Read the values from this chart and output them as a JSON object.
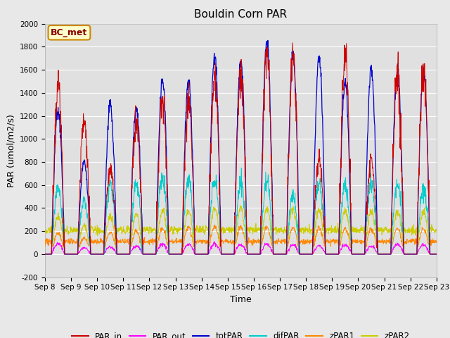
{
  "title": "Bouldin Corn PAR",
  "xlabel": "Time",
  "ylabel": "PAR (umol/m2/s)",
  "ylim": [
    -200,
    2000
  ],
  "n_days": 15,
  "xtick_labels": [
    "Sep 8",
    "Sep 9",
    "Sep 10",
    "Sep 11",
    "Sep 12",
    "Sep 13",
    "Sep 14",
    "Sep 15",
    "Sep 16",
    "Sep 17",
    "Sep 18",
    "Sep 19",
    "Sep 20",
    "Sep 21",
    "Sep 22",
    "Sep 23"
  ],
  "series_colors": {
    "PAR_in": "#cc0000",
    "PAR_out": "#ff00ff",
    "totPAR": "#0000cc",
    "difPAR": "#00cccc",
    "zPAR1": "#ff8800",
    "zPAR2": "#cccc00"
  },
  "fig_bg_color": "#e8e8e8",
  "plot_bg_color": "#e0e0e0",
  "annotation_text": "BC_met",
  "annotation_bg": "#ffffcc",
  "annotation_border": "#cc8800",
  "annotation_text_color": "#880000",
  "grid_color": "#ffffff",
  "title_fontsize": 11,
  "axis_fontsize": 9,
  "tick_fontsize": 7.5,
  "legend_fontsize": 8.5,
  "day_peaks_totPAR": [
    1250,
    800,
    1300,
    1270,
    1500,
    1500,
    1720,
    1680,
    1840,
    1750,
    1710,
    1490,
    1600,
    1600,
    1590
  ],
  "day_peaks_PAR_in": [
    1480,
    1150,
    750,
    1130,
    1340,
    1330,
    1510,
    1510,
    1730,
    1680,
    810,
    1710,
    820,
    1490,
    1590
  ],
  "day_peaks_difPAR": [
    580,
    460,
    600,
    600,
    660,
    650,
    640,
    610,
    630,
    510,
    620,
    600,
    610,
    600,
    590
  ],
  "day_peaks_PAR_out": [
    90,
    55,
    65,
    70,
    90,
    85,
    90,
    80,
    85,
    80,
    70,
    80,
    70,
    85,
    80
  ],
  "day_peaks_zPAR1": [
    180,
    140,
    190,
    200,
    220,
    230,
    240,
    235,
    230,
    230,
    225,
    220,
    220,
    220,
    220
  ],
  "day_peaks_zPAR2": [
    330,
    250,
    330,
    340,
    370,
    380,
    400,
    395,
    390,
    390,
    385,
    380,
    370,
    375,
    370
  ],
  "zPAR2_base_mean": 210,
  "zPAR2_base_std": 18,
  "zPAR1_base_mean": 110,
  "zPAR1_base_std": 12
}
